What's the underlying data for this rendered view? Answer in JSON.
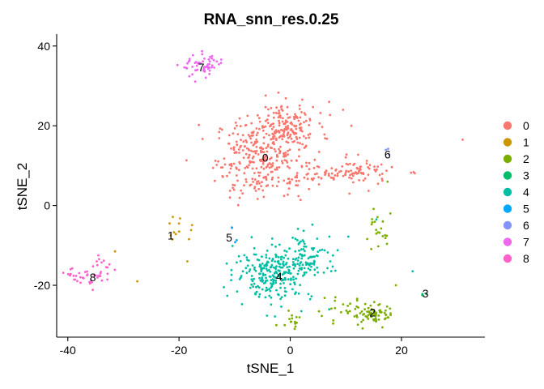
{
  "chart_data": {
    "type": "scatter",
    "title": "RNA_snn_res.0.25",
    "xlabel": "tSNE_1",
    "ylabel": "tSNE_2",
    "xlim": [
      -42,
      35
    ],
    "ylim": [
      -33,
      43
    ],
    "xticks": [
      "-40",
      "-20",
      "0",
      "20"
    ],
    "yticks": [
      "-20",
      "0",
      "20",
      "40"
    ],
    "grid": false,
    "legend_position": "right",
    "legend_title": "",
    "series": [
      {
        "name": "0",
        "color": "#F8766D",
        "n": 560,
        "blobs": [
          {
            "cx": -5,
            "cy": 12,
            "sx": 4.2,
            "sy": 5.0,
            "w": 0.55
          },
          {
            "cx": -1,
            "cy": 20,
            "sx": 2.8,
            "sy": 2.8,
            "w": 0.25
          },
          {
            "cx": 8,
            "cy": 8,
            "sx": 5.5,
            "sy": 1.2,
            "w": 0.14
          },
          {
            "cx": 13,
            "cy": 9,
            "sx": 2.0,
            "sy": 2.0,
            "w": 0.06
          }
        ],
        "extra": [
          [
            31,
            16.5
          ],
          [
            11,
            20
          ],
          [
            9.5,
            24
          ],
          [
            7,
            26
          ]
        ]
      },
      {
        "name": "1",
        "color": "#CD9600",
        "n": 10,
        "blobs": [
          {
            "cx": -20,
            "cy": -6,
            "sx": 1.5,
            "sy": 1.5,
            "w": 1.0
          }
        ],
        "extra": [
          [
            -20,
            -4.5
          ],
          [
            -21.5,
            -7.5
          ],
          [
            -18.5,
            -14
          ],
          [
            -31.5,
            -11.5
          ],
          [
            -27.5,
            -19
          ]
        ]
      },
      {
        "name": "2",
        "color": "#7CAE00",
        "n": 125,
        "blobs": [
          {
            "cx": 15,
            "cy": -27.5,
            "sx": 2.0,
            "sy": 1.3,
            "w": 0.55
          },
          {
            "cx": 15.5,
            "cy": -7,
            "sx": 0.9,
            "sy": 2.2,
            "w": 0.17
          },
          {
            "cx": 0.5,
            "cy": -29,
            "sx": 0.8,
            "sy": 1.0,
            "w": 0.1
          },
          {
            "cx": 9,
            "cy": -26,
            "sx": 3.0,
            "sy": 1.5,
            "w": 0.18
          }
        ],
        "extra": [
          [
            19,
            -20
          ],
          [
            18,
            -2
          ],
          [
            17.5,
            6
          ],
          [
            -2.5,
            -30
          ],
          [
            -1,
            -30
          ]
        ]
      },
      {
        "name": "3",
        "color": "#00BE67",
        "n": 3,
        "blobs": [
          {
            "cx": 24,
            "cy": -22.5,
            "sx": 0.3,
            "sy": 0.3,
            "w": 1.0
          }
        ],
        "extra": []
      },
      {
        "name": "4",
        "color": "#00BFA5",
        "n": 330,
        "blobs": [
          {
            "cx": -3,
            "cy": -17,
            "sx": 3.5,
            "sy": 3.2,
            "w": 0.7
          },
          {
            "cx": 3,
            "cy": -13,
            "sx": 3.0,
            "sy": 3.0,
            "w": 0.3
          }
        ],
        "extra": [
          [
            22,
            -16.5
          ],
          [
            15.5,
            -3.5
          ],
          [
            7,
            -26
          ],
          [
            2,
            -26.5
          ]
        ]
      },
      {
        "name": "5",
        "color": "#00A9FF",
        "n": 3,
        "blobs": [
          {
            "cx": -10.5,
            "cy": -7.5,
            "sx": 0.4,
            "sy": 1.2,
            "w": 1.0
          }
        ],
        "extra": [
          [
            -10.5,
            -5.5
          ]
        ]
      },
      {
        "name": "6",
        "color": "#8494FF",
        "n": 3,
        "blobs": [
          {
            "cx": 17.5,
            "cy": 13.5,
            "sx": 0.3,
            "sy": 0.5,
            "w": 1.0
          }
        ],
        "extra": []
      },
      {
        "name": "7",
        "color": "#ED68ED",
        "n": 60,
        "blobs": [
          {
            "cx": -15.5,
            "cy": 35,
            "sx": 2.0,
            "sy": 1.4,
            "w": 1.0
          }
        ],
        "extra": []
      },
      {
        "name": "8",
        "color": "#FF61CC",
        "n": 45,
        "blobs": [
          {
            "cx": -37.5,
            "cy": -18,
            "sx": 1.1,
            "sy": 1.3,
            "w": 0.55
          },
          {
            "cx": -34,
            "cy": -16,
            "sx": 0.9,
            "sy": 1.6,
            "w": 0.45
          }
        ],
        "extra": [
          [
            -34.5,
            -12.5
          ],
          [
            -39.5,
            -16
          ]
        ]
      }
    ],
    "cluster_labels": [
      {
        "text": "0",
        "x": -4.5,
        "y": 12
      },
      {
        "text": "1",
        "x": -21.5,
        "y": -7.5
      },
      {
        "text": "2",
        "x": 14.8,
        "y": -26.8
      },
      {
        "text": "3",
        "x": 24.3,
        "y": -22
      },
      {
        "text": "4",
        "x": -2,
        "y": -17.8
      },
      {
        "text": "5",
        "x": -11,
        "y": -8
      },
      {
        "text": "6",
        "x": 17.5,
        "y": 12.8
      },
      {
        "text": "7",
        "x": -16,
        "y": 34.7
      },
      {
        "text": "8",
        "x": -35.5,
        "y": -18
      }
    ]
  }
}
